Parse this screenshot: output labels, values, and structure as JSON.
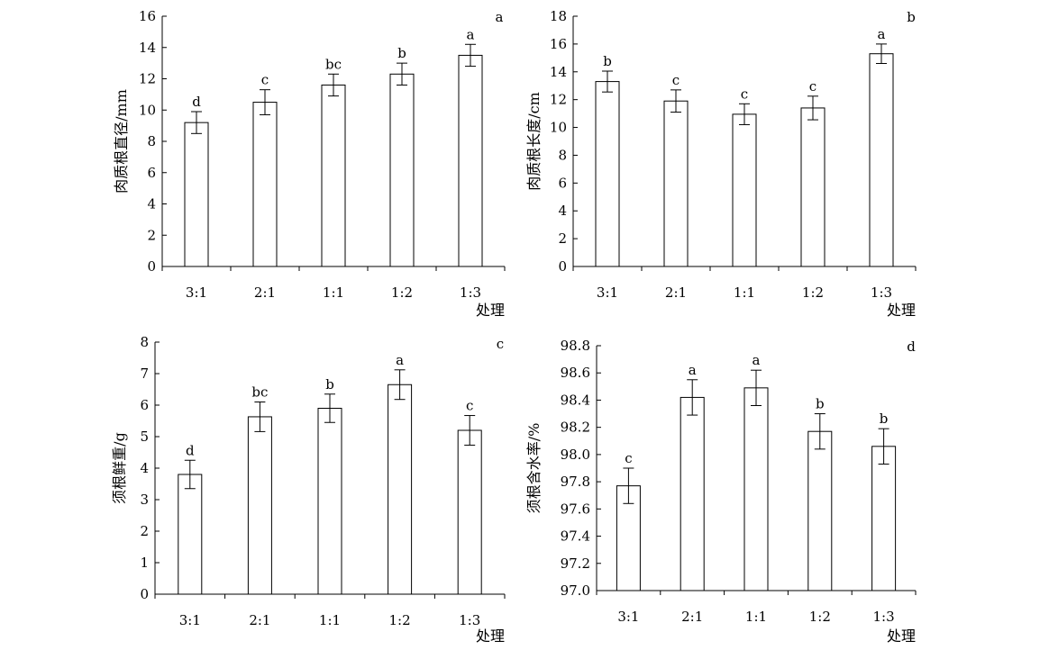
{
  "chart_data": [
    {
      "type": "bar",
      "panel_label": "a",
      "ylabel": "肉质根直径/mm",
      "xlabel": "",
      "categories": [
        "3:1",
        "2:1",
        "1:1",
        "1:2",
        "1:3"
      ],
      "values": [
        9.2,
        10.5,
        11.6,
        12.3,
        13.5
      ],
      "errors": [
        0.7,
        0.8,
        0.7,
        0.7,
        0.7
      ],
      "significance": [
        "d",
        "c",
        "bc",
        "b",
        "a"
      ],
      "ylim": [
        0,
        16
      ],
      "yticks": [
        "0",
        "2",
        "4",
        "6",
        "8",
        "10",
        "12",
        "14",
        "16"
      ],
      "grid": false
    },
    {
      "type": "bar",
      "panel_label": "b",
      "ylabel": "肉质根长度/cm",
      "xlabel": "处理",
      "categories": [
        "3:1",
        "2:1",
        "1:1",
        "1:2",
        "1:3"
      ],
      "values": [
        13.3,
        11.9,
        10.95,
        11.4,
        15.3
      ],
      "errors": [
        0.75,
        0.8,
        0.75,
        0.85,
        0.7
      ],
      "significance": [
        "b",
        "c",
        "c",
        "c",
        "a"
      ],
      "ylim": [
        0,
        18
      ],
      "yticks": [
        "0",
        "2",
        "4",
        "6",
        "8",
        "10",
        "12",
        "14",
        "16",
        "18"
      ],
      "grid": false
    },
    {
      "type": "bar",
      "panel_label": "c",
      "ylabel": "须根鲜重/g",
      "xlabel": "",
      "categories": [
        "3:1",
        "2:1",
        "1:1",
        "1:2",
        "1:3"
      ],
      "values": [
        3.8,
        5.63,
        5.9,
        6.65,
        5.2
      ],
      "errors": [
        0.45,
        0.47,
        0.45,
        0.47,
        0.47
      ],
      "significance": [
        "d",
        "bc",
        "b",
        "a",
        "c"
      ],
      "ylim": [
        0,
        8
      ],
      "yticks": [
        "0",
        "1",
        "2",
        "3",
        "4",
        "5",
        "6",
        "7",
        "8"
      ],
      "grid": false
    },
    {
      "type": "bar",
      "panel_label": "d",
      "ylabel": "须根含水率/%",
      "xlabel": "处理",
      "categories": [
        "3:1",
        "2:1",
        "1:1",
        "1:2",
        "1:3"
      ],
      "values": [
        97.77,
        98.42,
        98.49,
        98.17,
        98.06
      ],
      "errors": [
        0.13,
        0.13,
        0.13,
        0.13,
        0.13
      ],
      "significance": [
        "c",
        "a",
        "a",
        "b",
        "b"
      ],
      "ylim": [
        97.0,
        98.8
      ],
      "yticks": [
        "97.0",
        "97.2",
        "97.4",
        "97.6",
        "97.8",
        "98.0",
        "98.2",
        "98.4",
        "98.6",
        "98.8"
      ],
      "grid": false
    }
  ],
  "shared_xlabel_top": "处理"
}
